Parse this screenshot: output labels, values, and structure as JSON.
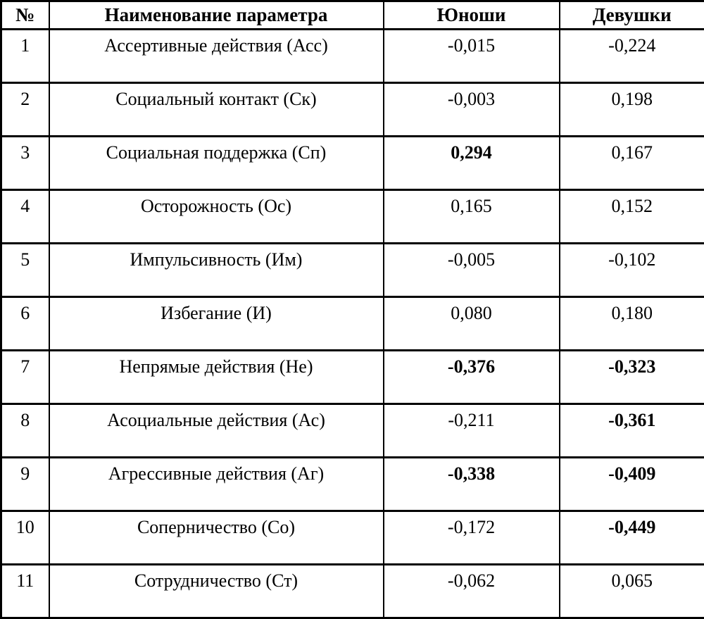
{
  "table": {
    "columns": [
      "№",
      "Наименование параметра",
      "Юноши",
      "Девушки"
    ],
    "rows": [
      {
        "num": "1",
        "name": "Ассертивные действия (Асс)",
        "boys": "-0,015",
        "boys_bold": false,
        "girls": "-0,224",
        "girls_bold": false
      },
      {
        "num": "2",
        "name": "Социальный контакт (Ск)",
        "boys": "-0,003",
        "boys_bold": false,
        "girls": "0,198",
        "girls_bold": false
      },
      {
        "num": "3",
        "name": "Социальная поддержка (Сп)",
        "boys": "0,294",
        "boys_bold": true,
        "girls": "0,167",
        "girls_bold": false
      },
      {
        "num": "4",
        "name": "Осторожность (Ос)",
        "boys": "0,165",
        "boys_bold": false,
        "girls": "0,152",
        "girls_bold": false
      },
      {
        "num": "5",
        "name": "Импульсивность (Им)",
        "boys": "-0,005",
        "boys_bold": false,
        "girls": "-0,102",
        "girls_bold": false
      },
      {
        "num": "6",
        "name": "Избегание (И)",
        "boys": "0,080",
        "boys_bold": false,
        "girls": "0,180",
        "girls_bold": false
      },
      {
        "num": "7",
        "name": "Непрямые действия (Не)",
        "boys": "-0,376",
        "boys_bold": true,
        "girls": "-0,323",
        "girls_bold": true
      },
      {
        "num": "8",
        "name": "Асоциальные действия (Ас)",
        "boys": "-0,211",
        "boys_bold": false,
        "girls": "-0,361",
        "girls_bold": true
      },
      {
        "num": "9",
        "name": "Агрессивные действия (Аг)",
        "boys": "-0,338",
        "boys_bold": true,
        "girls": "-0,409",
        "girls_bold": true
      },
      {
        "num": "10",
        "name": "Соперничество (Со)",
        "boys": "-0,172",
        "boys_bold": false,
        "girls": "-0,449",
        "girls_bold": true
      },
      {
        "num": "11",
        "name": "Сотрудничество (Ст)",
        "boys": "-0,062",
        "boys_bold": false,
        "girls": "0,065",
        "girls_bold": false
      }
    ]
  }
}
